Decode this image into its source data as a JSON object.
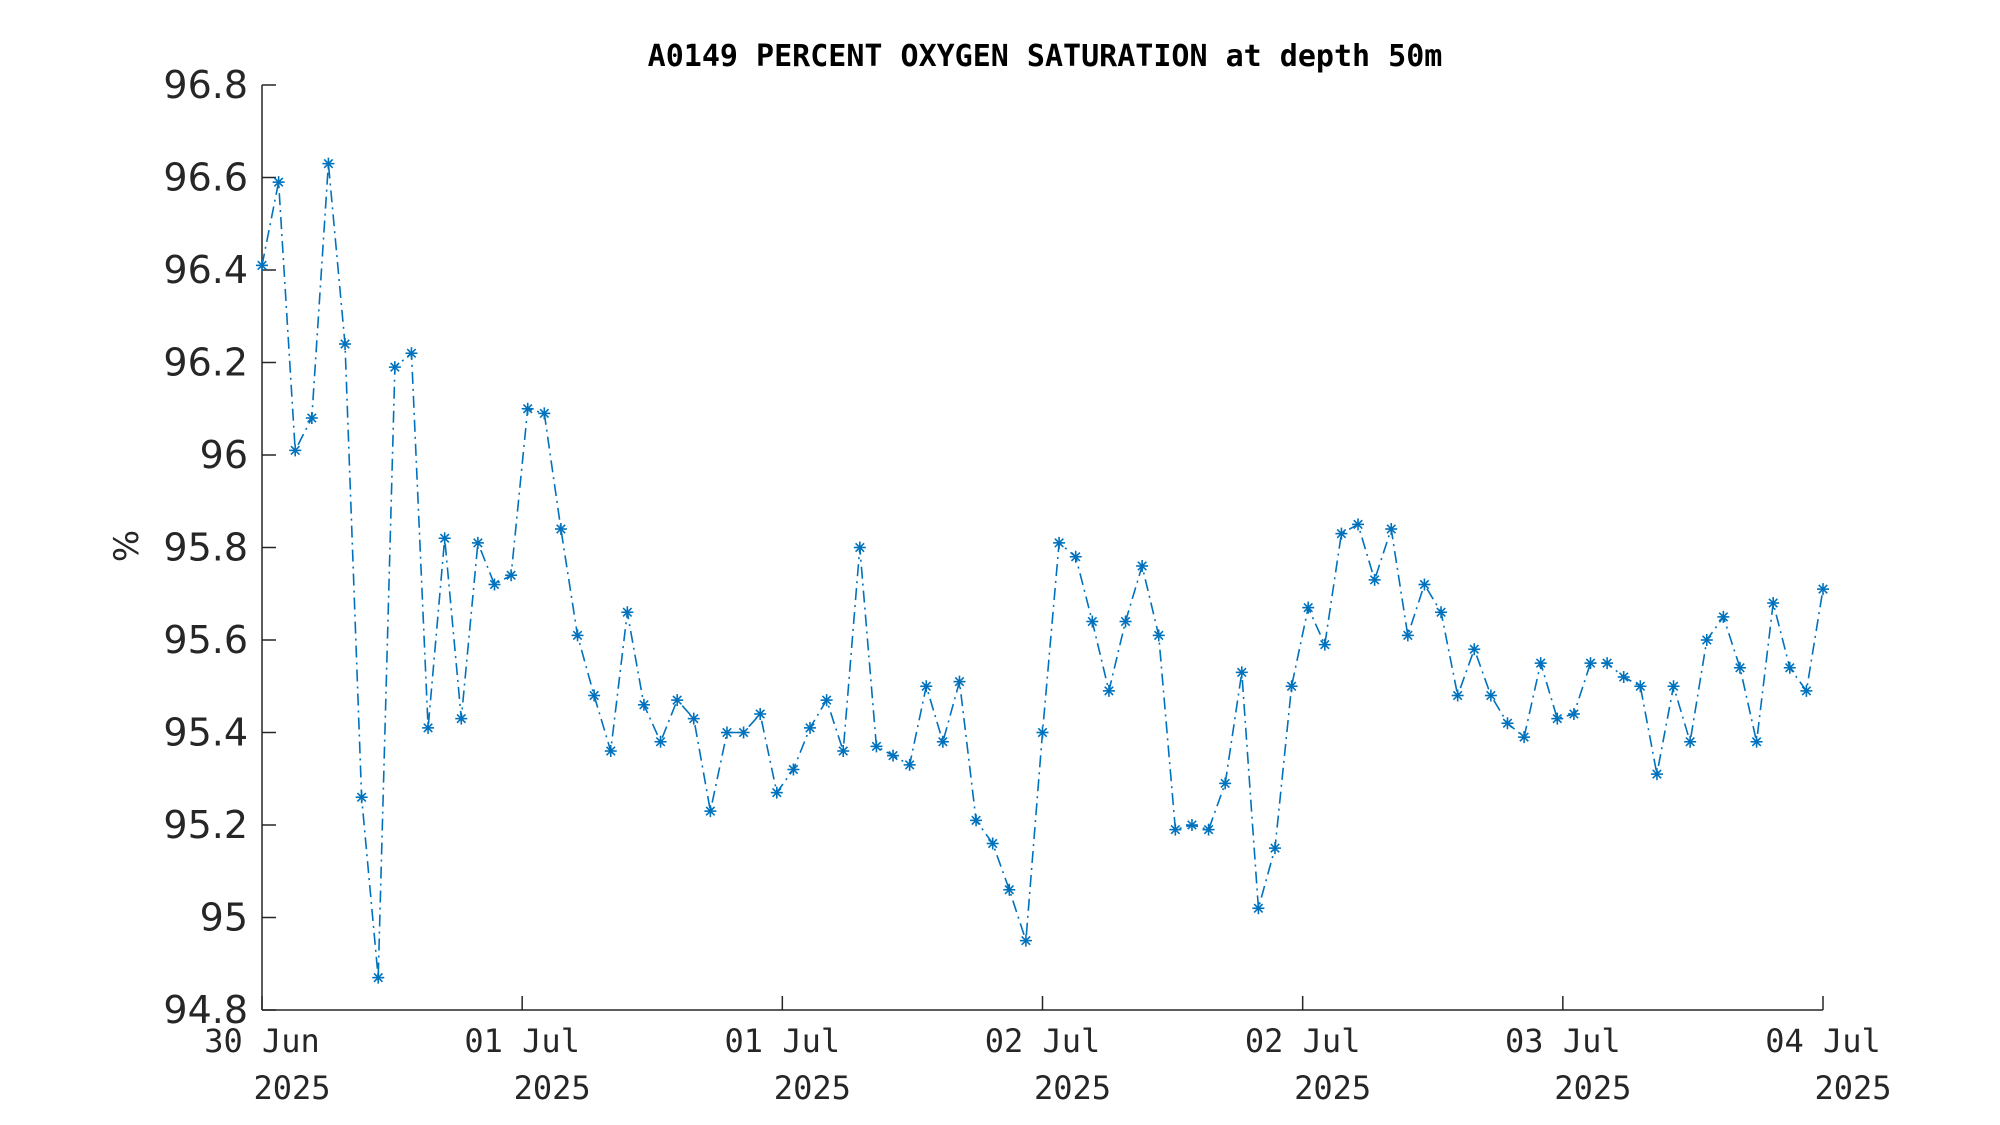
{
  "chart_data": {
    "type": "line",
    "title": "A0149 PERCENT OXYGEN SATURATION at depth 50m",
    "ylabel": "%",
    "xlabel": "",
    "ylim": [
      94.8,
      96.8
    ],
    "yticks": [
      94.8,
      95,
      95.2,
      95.4,
      95.6,
      95.8,
      96,
      96.2,
      96.4,
      96.6,
      96.8
    ],
    "ytick_labels": [
      "94.8",
      "95",
      "95.2",
      "95.4",
      "95.6",
      "95.8",
      "96",
      "96.2",
      "96.4",
      "96.6",
      "96.8"
    ],
    "xticks": [
      {
        "date": "30 Jun",
        "year": "2025"
      },
      {
        "date": "01 Jul",
        "year": "2025"
      },
      {
        "date": "01 Jul",
        "year": "2025"
      },
      {
        "date": "02 Jul",
        "year": "2025"
      },
      {
        "date": "02 Jul",
        "year": "2025"
      },
      {
        "date": "03 Jul",
        "year": "2025"
      },
      {
        "date": "04 Jul",
        "year": "2025"
      }
    ],
    "grid": false,
    "legend": "none",
    "series": [
      {
        "color": "#0072BD",
        "line_style": "dash-dot",
        "marker": "asterisk",
        "values": [
          96.41,
          96.59,
          96.01,
          96.08,
          96.63,
          96.24,
          95.26,
          94.87,
          96.19,
          96.22,
          95.41,
          95.82,
          95.43,
          95.81,
          95.72,
          95.74,
          96.1,
          96.09,
          95.84,
          95.61,
          95.48,
          95.36,
          95.66,
          95.46,
          95.38,
          95.47,
          95.43,
          95.23,
          95.4,
          95.4,
          95.44,
          95.27,
          95.32,
          95.41,
          95.47,
          95.36,
          95.8,
          95.37,
          95.35,
          95.33,
          95.5,
          95.38,
          95.51,
          95.21,
          95.16,
          95.06,
          94.95,
          95.4,
          95.81,
          95.78,
          95.64,
          95.49,
          95.64,
          95.76,
          95.61,
          95.19,
          95.2,
          95.19,
          95.29,
          95.53,
          95.02,
          95.15,
          95.5,
          95.67,
          95.59,
          95.83,
          95.85,
          95.73,
          95.84,
          95.61,
          95.72,
          95.66,
          95.48,
          95.58,
          95.48,
          95.42,
          95.39,
          95.55,
          95.43,
          95.44,
          95.55,
          95.55,
          95.52,
          95.5,
          95.31,
          95.5,
          95.38,
          95.6,
          95.65,
          95.54,
          95.38,
          95.68,
          95.54,
          95.49,
          95.71
        ]
      }
    ]
  }
}
